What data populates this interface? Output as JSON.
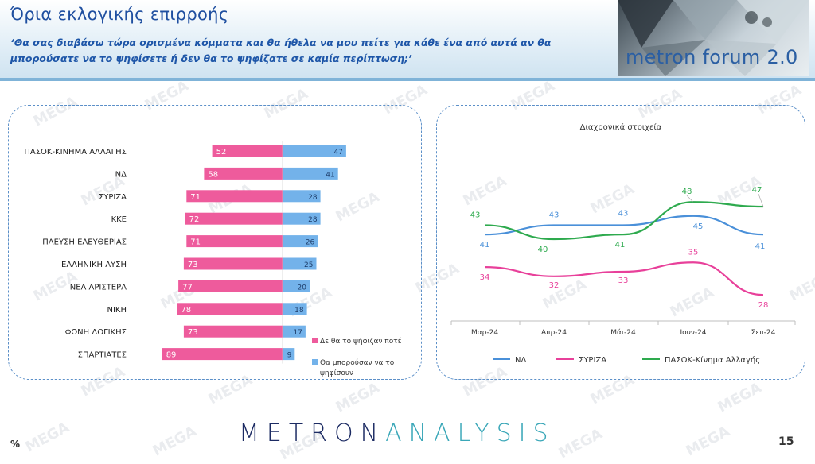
{
  "header": {
    "title": "Όρια εκλογικής επιρροής",
    "subtitle": "‘Θα σας διαβάσω τώρα ορισμένα κόμματα και θα ήθελα να μου πείτε για κάθε ένα από αυτά αν θα μπορούσατε να το ψηφίσετε ή δεν θα το ψηφίζατε σε καμία περίπτωση;’",
    "logo_text": "metron forum 2.0"
  },
  "watermark_text": "MEGA",
  "footer": {
    "brand_part1": "METRON",
    "brand_part2": "ANALYSIS",
    "page_number": "15",
    "unit_marker": "%"
  },
  "colors": {
    "never_vote": "#ee5b9c",
    "could_vote": "#73b2ea",
    "nd": "#4a90d9",
    "syriza": "#e8409a",
    "pasok": "#2eaa4e",
    "title": "#1f4fa0"
  },
  "chart_data": [
    {
      "type": "bar",
      "orientation": "horizontal-diverging",
      "categories": [
        "ΠΑΣΟΚ-ΚΙΝΗΜΑ ΑΛΛΑΓΗΣ",
        "ΝΔ",
        "ΣΥΡΙΖΑ",
        "ΚΚΕ",
        "ΠΛΕΥΣΗ ΕΛΕΥΘΕΡΙΑΣ",
        "ΕΛΛΗΝΙΚΗ ΛΥΣΗ",
        "ΝΕΑ ΑΡΙΣΤΕΡΑ",
        "ΝΙΚΗ",
        "ΦΩΝΗ ΛΟΓΙΚΗΣ",
        "ΣΠΑΡΤΙΑΤΕΣ"
      ],
      "series": [
        {
          "name": "Δε θα το ψήφιζαν ποτέ",
          "values": [
            52,
            58,
            71,
            72,
            71,
            73,
            77,
            78,
            73,
            89
          ]
        },
        {
          "name": "Θα μπορούσαν να το ψηφίσουν",
          "values": [
            47,
            41,
            28,
            28,
            26,
            25,
            20,
            18,
            17,
            9
          ]
        }
      ],
      "legend_position": "bottom-right",
      "unit": "%"
    },
    {
      "type": "line",
      "title": "Διαχρονικά στοιχεία",
      "x": [
        "Μαρ-24",
        "Απρ-24",
        "Μάι-24",
        "Ιουν-24",
        "Σεπ-24"
      ],
      "series": [
        {
          "name": "ΝΔ",
          "values": [
            41,
            43,
            43,
            45,
            41
          ]
        },
        {
          "name": "ΣΥΡΙΖΑ",
          "values": [
            34,
            32,
            33,
            35,
            28
          ]
        },
        {
          "name": "ΠΑΣΟΚ-Κίνημα Αλλαγής",
          "values": [
            43,
            40,
            41,
            48,
            47
          ]
        }
      ],
      "legend_position": "bottom",
      "grid": false
    }
  ]
}
